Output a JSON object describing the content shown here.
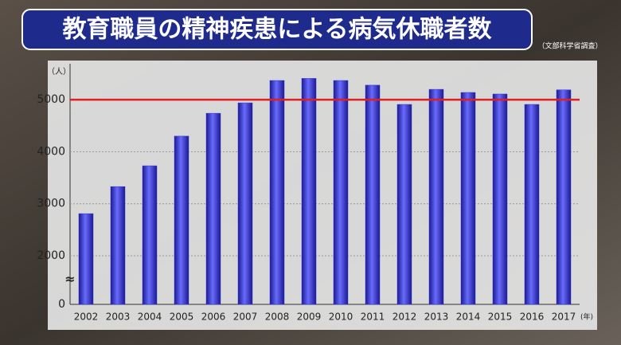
{
  "chart_data": {
    "type": "bar",
    "title": "教育職員の精神疾患による病気休職者数",
    "source": "（文部科学省調査）",
    "y_unit": "（人）",
    "x_unit": "(年)",
    "categories": [
      "2002",
      "2003",
      "2004",
      "2005",
      "2006",
      "2007",
      "2008",
      "2009",
      "2010",
      "2011",
      "2012",
      "2013",
      "2014",
      "2015",
      "2016",
      "2017"
    ],
    "values": [
      2810,
      3330,
      3730,
      4300,
      4740,
      4940,
      5370,
      5410,
      5370,
      5280,
      4910,
      5200,
      5140,
      5110,
      4910,
      5190
    ],
    "color": "#3434d6",
    "ylim": [
      0,
      5600
    ],
    "axis_break": [
      0,
      2000
    ],
    "yticks": [
      0,
      2000,
      3000,
      4000,
      5000
    ],
    "grid": true,
    "reference_line": {
      "value": 5000,
      "color": "#e02020"
    }
  }
}
